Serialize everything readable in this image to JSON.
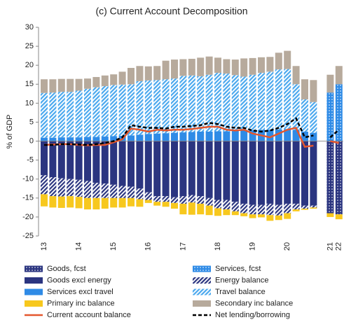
{
  "chart_data": {
    "type": "bar",
    "title": "(c) Current  Account Decomposition",
    "y_label": "% of GDP",
    "categories": [
      "13",
      null,
      null,
      null,
      "14",
      null,
      null,
      null,
      "15",
      null,
      null,
      null,
      "16",
      null,
      null,
      null,
      "17",
      null,
      null,
      null,
      "18",
      null,
      null,
      null,
      "19",
      null,
      null,
      null,
      "20",
      null,
      null,
      null,
      "21",
      "22"
    ],
    "ylim": [
      -25,
      30
    ],
    "yticks": [
      -25,
      -20,
      -15,
      -10,
      -5,
      0,
      5,
      10,
      15,
      20,
      25,
      30
    ],
    "grid": false,
    "series": [
      {
        "name": "Goods, fcst",
        "color": "#2b3580",
        "pattern": "dots",
        "values": [
          null,
          null,
          null,
          null,
          null,
          null,
          null,
          null,
          null,
          null,
          null,
          null,
          null,
          null,
          null,
          null,
          null,
          null,
          null,
          null,
          null,
          null,
          null,
          null,
          null,
          null,
          null,
          null,
          null,
          null,
          null,
          null,
          -19.0,
          -19.3
        ]
      },
      {
        "name": "Services, fcst",
        "color": "#2f8be6",
        "pattern": "dots",
        "values": [
          null,
          null,
          null,
          null,
          null,
          null,
          null,
          null,
          null,
          null,
          null,
          null,
          null,
          null,
          null,
          null,
          null,
          null,
          null,
          null,
          null,
          null,
          null,
          null,
          null,
          null,
          null,
          null,
          null,
          null,
          null,
          null,
          12.8,
          15.0
        ]
      },
      {
        "name": "Goods excl energy",
        "color": "#2b3580",
        "pattern": "solid",
        "values": [
          -9,
          -9.5,
          -9.8,
          -10,
          -10.2,
          -10.5,
          -11,
          -11.2,
          -11.5,
          -11.8,
          -12,
          -12.5,
          -13.5,
          -14.5,
          -14.5,
          -14.8,
          -14.5,
          -14.2,
          -14.5,
          -15,
          -15.5,
          -15.5,
          -16,
          -16.5,
          -16.8,
          -16.8,
          -16.5,
          -16.8,
          -16.5,
          -16.5,
          -17,
          -17,
          null,
          null
        ]
      },
      {
        "name": "Energy balance",
        "color": "#2b3580",
        "pattern": "hatch",
        "values": [
          -5,
          -5,
          -4.8,
          -4.5,
          -4.5,
          -4.5,
          -4,
          -3.8,
          -3.5,
          -3.2,
          -3,
          -2.8,
          -2,
          -1.5,
          -1.5,
          -1.5,
          -2,
          -2,
          -2,
          -2,
          -2.2,
          -2.5,
          -2.5,
          -2.5,
          -2.5,
          -2.5,
          -3,
          -2.8,
          -2.5,
          -1.5,
          -0.8,
          -0.5,
          null,
          null
        ]
      },
      {
        "name": "Services excl travel",
        "color": "#2f8be6",
        "pattern": "solid",
        "values": [
          0.9,
          0.9,
          1.0,
          1.0,
          1.0,
          1.1,
          1.1,
          1.2,
          1.3,
          1.4,
          1.5,
          1.7,
          1.9,
          2.0,
          2.1,
          2.2,
          2.3,
          2.4,
          2.5,
          2.5,
          2.6,
          2.6,
          2.7,
          2.8,
          2.9,
          3.0,
          3.0,
          3.1,
          3.2,
          3.0,
          2.5,
          2.2,
          null,
          null
        ]
      },
      {
        "name": "Travel balance",
        "color": "#4aa8ee",
        "pattern": "hatch",
        "values": [
          11.8,
          11.9,
          12.0,
          12.0,
          12.3,
          12.7,
          13.1,
          13.3,
          13.5,
          13.5,
          13.5,
          14.1,
          14.1,
          14.1,
          14.2,
          14.3,
          14.9,
          14.9,
          14.6,
          15.0,
          15.4,
          15.2,
          14.7,
          14.2,
          14.6,
          15.0,
          15.3,
          15.8,
          15.8,
          12.0,
          8.5,
          8.1,
          null,
          null
        ]
      },
      {
        "name": "Primary inc balance",
        "color": "#f7c81e",
        "pattern": "solid",
        "values": [
          -3.2,
          -3,
          -3,
          -3,
          -3,
          -3,
          -3,
          -2.8,
          -2.5,
          -2.5,
          -2.2,
          -2,
          -0.8,
          -1,
          -1.3,
          -1.5,
          -2.8,
          -3.2,
          -2.8,
          -2.5,
          -2,
          -1.5,
          -1,
          -0.8,
          -1,
          -0.8,
          -1.5,
          -1.2,
          -1.5,
          -0.5,
          -0.3,
          -0.3,
          -1.0,
          -1.3
        ]
      },
      {
        "name": "Secondary inc balance",
        "color": "#b7aa9c",
        "pattern": "solid",
        "values": [
          3.6,
          3.5,
          3.4,
          3.4,
          3.1,
          2.7,
          2.7,
          2.8,
          2.8,
          3.4,
          4.3,
          4.0,
          3.7,
          3.7,
          4.9,
          5.0,
          4.4,
          4.4,
          4.9,
          4.8,
          4.0,
          3.8,
          4.1,
          4.8,
          4.4,
          4.1,
          3.9,
          4.4,
          4.8,
          4.8,
          5.3,
          5.8,
          4.7,
          4.8
        ]
      },
      {
        "name": "Current account balance",
        "color": "#e4572e",
        "type": "line",
        "dash": false,
        "values": [
          -1,
          -0.9,
          -0.8,
          -0.8,
          -1,
          -1.1,
          -1,
          -1,
          -0.3,
          0.5,
          3.3,
          3,
          2.5,
          3,
          2.8,
          3,
          3,
          3.2,
          3.5,
          3.8,
          3.8,
          3,
          2.8,
          3,
          2,
          1.5,
          1,
          2,
          3,
          3.5,
          -1.5,
          -1.2,
          0,
          -0.5
        ]
      },
      {
        "name": "Net lending/borrowing",
        "color": "#000000",
        "type": "line",
        "dash": true,
        "values": [
          -1,
          -1,
          -0.8,
          -0.8,
          -0.9,
          -1,
          -0.8,
          -0.5,
          0,
          1,
          4.2,
          3.8,
          3.5,
          3.5,
          3.3,
          3.8,
          3.8,
          4,
          4.2,
          4.8,
          4.5,
          3.8,
          3.5,
          3.5,
          2.8,
          2.5,
          2.8,
          3.5,
          4.5,
          6,
          1,
          1.5,
          1,
          3
        ]
      }
    ]
  }
}
